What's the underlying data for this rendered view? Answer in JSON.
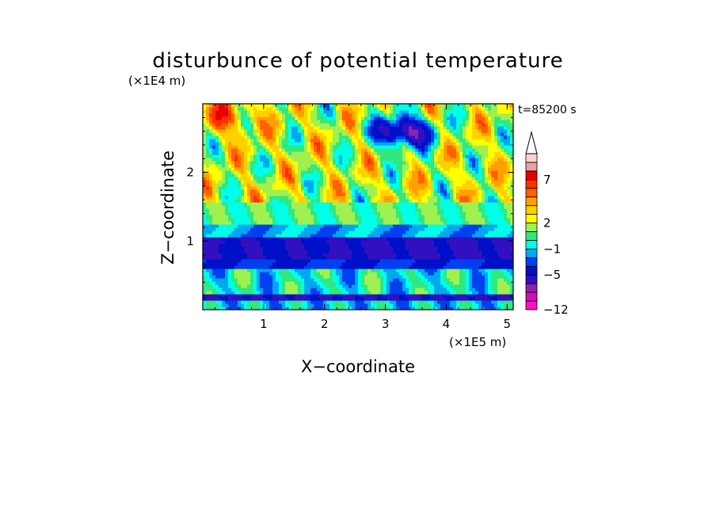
{
  "chart_data": {
    "type": "heatmap",
    "title": "disturbunce of potential temperature",
    "time_label": "t=85200 s",
    "xlabel": "X−coordinate",
    "ylabel": "Z−coordinate",
    "x_unit": "(×1E5 m)",
    "y_unit": "(×1E4 m)",
    "xlim": [
      0,
      5.1
    ],
    "ylim": [
      0,
      3.0
    ],
    "x_ticks": [
      "1",
      "2",
      "3",
      "4",
      "5"
    ],
    "y_ticks": [
      "1",
      "2"
    ],
    "grid": false,
    "colorbar": {
      "placement": "right",
      "extend": "max",
      "levels": [
        -12,
        -11,
        -9,
        -7,
        -5,
        -3,
        -2,
        -1,
        0,
        1,
        2,
        3,
        4,
        5,
        6,
        7,
        8,
        9
      ],
      "colors": [
        "#ff10c0",
        "#d010b0",
        "#9020b0",
        "#3010c0",
        "#0010c8",
        "#0040f0",
        "#00a8f0",
        "#00ffe8",
        "#30e880",
        "#a0f050",
        "#ffff00",
        "#ffd000",
        "#ffa000",
        "#ff6000",
        "#ff3000",
        "#e80000",
        "#f0a0a0",
        "#ffd0d0"
      ],
      "tick_labels": [
        "−12",
        "−5",
        "−1",
        "2",
        "7"
      ]
    }
  }
}
